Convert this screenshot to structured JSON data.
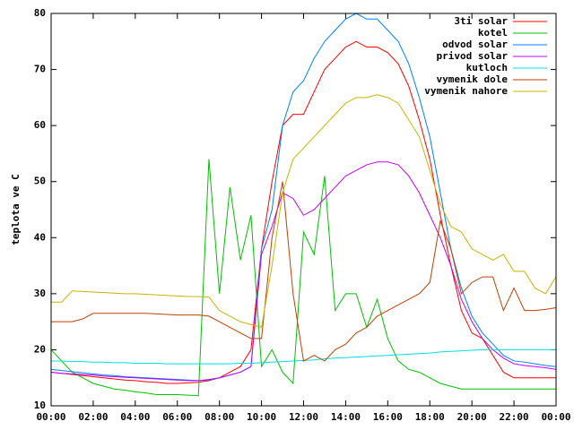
{
  "chart_data": {
    "type": "line",
    "ylabel": "teplota ve C",
    "x": [
      0,
      0.5,
      1,
      1.5,
      2,
      2.5,
      3,
      3.5,
      4,
      4.5,
      5,
      5.5,
      6,
      6.5,
      7,
      7.5,
      8,
      8.5,
      9,
      9.5,
      10,
      10.5,
      11,
      11.5,
      12,
      12.5,
      13,
      13.5,
      14,
      14.5,
      15,
      15.5,
      16,
      16.5,
      17,
      17.5,
      18,
      18.5,
      19,
      19.5,
      20,
      20.5,
      21,
      21.5,
      22,
      22.5,
      23,
      23.5,
      24
    ],
    "xlim": [
      0,
      24
    ],
    "xticks": [
      {
        "value": 0,
        "label": "00:00"
      },
      {
        "value": 2,
        "label": "02:00"
      },
      {
        "value": 4,
        "label": "04:00"
      },
      {
        "value": 6,
        "label": "06:00"
      },
      {
        "value": 8,
        "label": "08:00"
      },
      {
        "value": 10,
        "label": "10:00"
      },
      {
        "value": 12,
        "label": "12:00"
      },
      {
        "value": 14,
        "label": "14:00"
      },
      {
        "value": 16,
        "label": "16:00"
      },
      {
        "value": 18,
        "label": "18:00"
      },
      {
        "value": 20,
        "label": "20:00"
      },
      {
        "value": 22,
        "label": "22:00"
      },
      {
        "value": 24,
        "label": "00:00"
      }
    ],
    "ylim": [
      10,
      80
    ],
    "yticks": [
      10,
      20,
      30,
      40,
      50,
      60,
      70,
      80
    ],
    "grid": false,
    "legend": "top-right",
    "series": [
      {
        "name": "3ti solar",
        "color": "#ff0000",
        "values": [
          16,
          15.8,
          15.6,
          15.4,
          15.2,
          15,
          14.8,
          14.6,
          14.5,
          14.3,
          14.2,
          14,
          14,
          14.1,
          14.2,
          14.5,
          15,
          16,
          17,
          20,
          38,
          50,
          60,
          62,
          62,
          66,
          70,
          72,
          74,
          75,
          74,
          74,
          73,
          71,
          67,
          61,
          54,
          44,
          35,
          27,
          23,
          22,
          19,
          16,
          15,
          15,
          15,
          15,
          15
        ]
      },
      {
        "name": "kotel",
        "color": "#00c000",
        "values": [
          20,
          18,
          16,
          15,
          14,
          13.5,
          13,
          12.8,
          12.5,
          12.3,
          12,
          12,
          12,
          11.9,
          11.8,
          54,
          30,
          49,
          36,
          44,
          17,
          20,
          16,
          14,
          41,
          37,
          51,
          27,
          30,
          30,
          24,
          29,
          22,
          18,
          16.5,
          16,
          15,
          14,
          13.5,
          13,
          13,
          13,
          13,
          13,
          13,
          13,
          13,
          13,
          13
        ]
      },
      {
        "name": "odvod solar",
        "color": "#0080ff",
        "values": [
          16.5,
          16.3,
          16.1,
          15.9,
          15.7,
          15.5,
          15.4,
          15.2,
          15.1,
          15,
          14.9,
          14.8,
          14.7,
          14.6,
          14.5,
          14.6,
          15,
          15.5,
          16,
          17,
          38,
          45,
          60,
          66,
          68,
          72,
          75,
          77,
          79,
          80,
          79,
          79,
          77,
          75,
          71,
          65,
          58,
          48,
          38,
          31,
          26,
          23,
          21,
          19,
          18,
          17.8,
          17.5,
          17.2,
          17
        ]
      },
      {
        "name": "privod solar",
        "color": "#c000ff",
        "values": [
          16,
          15.8,
          15.7,
          15.6,
          15.5,
          15.3,
          15.2,
          15.1,
          15,
          14.9,
          14.8,
          14.7,
          14.6,
          14.5,
          14.5,
          14.7,
          15,
          15.5,
          16,
          17,
          37,
          42,
          48,
          47,
          44,
          45,
          47,
          49,
          51,
          52,
          53,
          53.5,
          53.5,
          53,
          51,
          48,
          44,
          40,
          35,
          29,
          25,
          22,
          20,
          18.5,
          17.5,
          17.2,
          17,
          16.8,
          16.5
        ]
      },
      {
        "name": "kutloch",
        "color": "#00e0e0",
        "values": [
          18,
          18,
          17.9,
          17.9,
          17.8,
          17.8,
          17.7,
          17.7,
          17.6,
          17.6,
          17.6,
          17.5,
          17.5,
          17.5,
          17.5,
          17.5,
          17.5,
          17.5,
          17.6,
          17.6,
          17.7,
          17.8,
          17.9,
          18,
          18.1,
          18.2,
          18.4,
          18.5,
          18.6,
          18.7,
          18.8,
          18.9,
          19,
          19.1,
          19.2,
          19.3,
          19.4,
          19.6,
          19.7,
          19.8,
          19.9,
          20,
          20,
          20,
          20,
          20,
          20,
          20,
          20
        ]
      },
      {
        "name": "vymenik dole",
        "color": "#c04000",
        "values": [
          25,
          25,
          25,
          25.5,
          26.5,
          26.5,
          26.5,
          26.5,
          26.5,
          26.5,
          26.4,
          26.3,
          26.2,
          26.2,
          26.2,
          26,
          25,
          24,
          23,
          22,
          22,
          40,
          50,
          30,
          18,
          19,
          18,
          20,
          21,
          23,
          24,
          26,
          27,
          28,
          29,
          30,
          32,
          43,
          38,
          30,
          32,
          33,
          33,
          27,
          31,
          27,
          27,
          27.2,
          27.5
        ]
      },
      {
        "name": "vymenik nahore",
        "color": "#c8b400",
        "values": [
          28.5,
          28.5,
          30.5,
          30.4,
          30.3,
          30.2,
          30.1,
          30,
          30,
          29.9,
          29.8,
          29.7,
          29.6,
          29.5,
          29.5,
          29.4,
          27,
          26,
          25,
          24.5,
          24,
          35,
          48,
          54,
          56,
          58,
          60,
          62,
          64,
          65,
          65,
          65.5,
          65,
          64,
          61,
          58,
          52,
          46,
          42,
          41,
          38,
          37,
          36,
          37,
          34,
          34,
          31,
          30,
          33
        ]
      }
    ]
  }
}
